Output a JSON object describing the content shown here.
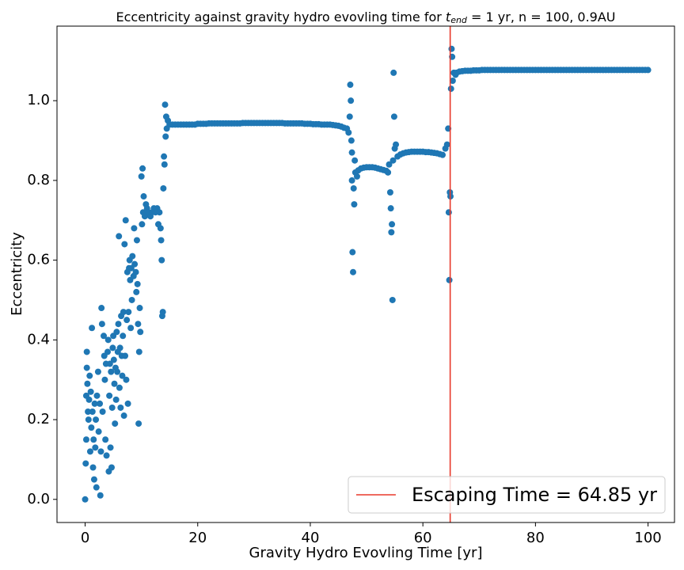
{
  "chart_data": {
    "type": "scatter",
    "title": [
      "Eccentricity against gravity hydro evovling time for ",
      "t",
      "end",
      " = 1 yr, n = 100, 0.9AU"
    ],
    "x_label": "Gravity Hydro Evovling Time [yr]",
    "y_label": "Eccentricity",
    "color": "#1f77b4",
    "xlim": [
      -5,
      104.7
    ],
    "ylim": [
      -0.058,
      1.187
    ],
    "xticks": [
      0,
      20,
      40,
      60,
      80,
      100
    ],
    "yticks": [
      {
        "value": 0,
        "label": "0.0"
      },
      0.2,
      0.4,
      0.6,
      0.8,
      {
        "value": 1,
        "label": "1.0"
      }
    ],
    "grid": false,
    "legend": "lower right",
    "vline": {
      "x": 64.85,
      "label": "Escaping Time = 64.85 yr",
      "color": "#e8392a"
    },
    "x": [
      0,
      0.1,
      0.2,
      0.2,
      0.3,
      0.3,
      0.4,
      0.5,
      0.6,
      0.7,
      0.8,
      0.9,
      1.0,
      1.1,
      1.2,
      1.3,
      1.4,
      1.5,
      1.6,
      1.7,
      1.8,
      1.9,
      2.0,
      2.1,
      2.3,
      2.4,
      2.6,
      2.7,
      2.8,
      2.9,
      3.0,
      3.1,
      3.3,
      3.4,
      3.5,
      3.6,
      3.7,
      3.8,
      4.0,
      4.1,
      4.2,
      4.3,
      4.4,
      4.5,
      4.6,
      4.7,
      4.8,
      4.9,
      5.0,
      5.1,
      5.2,
      5.3,
      5.4,
      5.5,
      5.6,
      5.7,
      5.8,
      5.9,
      6.0,
      6.1,
      6.2,
      6.3,
      6.4,
      6.5,
      6.6,
      6.7,
      6.8,
      6.9,
      7.0,
      7.1,
      7.2,
      7.3,
      7.4,
      7.5,
      7.6,
      7.7,
      7.8,
      7.9,
      8.0,
      8.1,
      8.2,
      8.3,
      8.4,
      8.6,
      8.7,
      8.8,
      9.0,
      9.1,
      9.2,
      9.3,
      9.4,
      9.5,
      9.6,
      9.7,
      9.8,
      10.0,
      10.1,
      10.2,
      10.3,
      10.4,
      10.6,
      10.8,
      11.0,
      11.3,
      11.6,
      11.9,
      12.2,
      12.5,
      12.8,
      13.0,
      13.2,
      13.4,
      13.5,
      13.6,
      13.7,
      13.8,
      13.9,
      14.0,
      14.1,
      14.2,
      14.3,
      14.4,
      14.5,
      14.7,
      15.0,
      15.5,
      16.0,
      16.5,
      17.0,
      17.5,
      18,
      18.5,
      19,
      19.5,
      20,
      20.5,
      21,
      21.5,
      22,
      22.5,
      23,
      23.5,
      24,
      24.5,
      25,
      25.5,
      26,
      26.5,
      27,
      27.5,
      28,
      28.5,
      29,
      29.5,
      30,
      30.5,
      31,
      31.5,
      32,
      32.5,
      33,
      33.5,
      34,
      34.5,
      35,
      35.5,
      36,
      36.5,
      37,
      37.5,
      38,
      38.5,
      39,
      39.5,
      40,
      40.5,
      41,
      41.5,
      42,
      42.5,
      43,
      43.5,
      44,
      44.5,
      45,
      45.5,
      46,
      46.5,
      46.8,
      47.0,
      47.1,
      47.2,
      47.3,
      47.4,
      47.4,
      47.5,
      47.6,
      47.7,
      47.8,
      47.9,
      48.0,
      48.3,
      48.5,
      49,
      49.5,
      50,
      50.5,
      51,
      51.5,
      52,
      52.5,
      53,
      53.5,
      53.8,
      54.0,
      54.2,
      54.3,
      54.4,
      54.5,
      54.6,
      54.7,
      54.8,
      54.9,
      55.0,
      55.2,
      55.5,
      56,
      56.5,
      57,
      57.5,
      58,
      58.5,
      59,
      59.5,
      60,
      60.5,
      61,
      61.5,
      62,
      62.5,
      63,
      63.5,
      64,
      64.3,
      64.5,
      64.6,
      64.7,
      64.8,
      64.9,
      65.0,
      65.1,
      65.2,
      65.3,
      65.5,
      65.8,
      66,
      66.5,
      67,
      67.5,
      68,
      68.5,
      69,
      69.5,
      70,
      70.5,
      71,
      71.5,
      72,
      72.5,
      73,
      73.5,
      74,
      74.5,
      75,
      75.5,
      76,
      76.5,
      77,
      77.5,
      78,
      78.5,
      79,
      79.5,
      80,
      80.5,
      81,
      81.5,
      82,
      82.5,
      83,
      83.5,
      84,
      84.5,
      85,
      85.5,
      86,
      86.5,
      87,
      87.5,
      88,
      88.5,
      89,
      89.5,
      90,
      90.5,
      91,
      91.5,
      92,
      92.5,
      93,
      93.5,
      94,
      94.5,
      95,
      95.5,
      96,
      96.5,
      97,
      97.5,
      98,
      98.5,
      99,
      99.5,
      100
    ],
    "values": [
      0,
      0.09,
      0.15,
      0.26,
      0.37,
      0.33,
      0.29,
      0.22,
      0.2,
      0.25,
      0.31,
      0.12,
      0.27,
      0.18,
      0.43,
      0.22,
      0.08,
      0.15,
      0.05,
      0.24,
      0.13,
      0.2,
      0.03,
      0.26,
      0.32,
      0.17,
      0.24,
      0.01,
      0.12,
      0.48,
      0.44,
      0.22,
      0.41,
      0.36,
      0.3,
      0.15,
      0.34,
      0.11,
      0.37,
      0.4,
      0.07,
      0.26,
      0.34,
      0.13,
      0.32,
      0.08,
      0.23,
      0.38,
      0.41,
      0.35,
      0.29,
      0.19,
      0.33,
      0.25,
      0.42,
      0.32,
      0.37,
      0.44,
      0.66,
      0.28,
      0.38,
      0.23,
      0.46,
      0.36,
      0.31,
      0.41,
      0.47,
      0.21,
      0.64,
      0.36,
      0.7,
      0.3,
      0.45,
      0.57,
      0.24,
      0.47,
      0.58,
      0.6,
      0.55,
      0.43,
      0.58,
      0.5,
      0.61,
      0.56,
      0.68,
      0.59,
      0.57,
      0.52,
      0.65,
      0.54,
      0.44,
      0.19,
      0.37,
      0.48,
      0.42,
      0.81,
      0.69,
      0.83,
      0.72,
      0.76,
      0.71,
      0.74,
      0.73,
      0.72,
      0.71,
      0.72,
      0.73,
      0.72,
      0.73,
      0.69,
      0.72,
      0.68,
      0.65,
      0.6,
      0.46,
      0.47,
      0.78,
      0.86,
      0.84,
      0.99,
      0.91,
      0.96,
      0.93,
      0.95,
      0.94,
      0.94,
      0.94,
      0.94,
      0.94,
      0.94,
      0.94,
      0.94,
      0.94,
      0.94,
      0.942,
      0.942,
      0.942,
      0.942,
      0.943,
      0.943,
      0.943,
      0.943,
      0.943,
      0.943,
      0.943,
      0.943,
      0.943,
      0.943,
      0.943,
      0.943,
      0.944,
      0.944,
      0.944,
      0.944,
      0.944,
      0.944,
      0.944,
      0.944,
      0.944,
      0.944,
      0.944,
      0.944,
      0.944,
      0.944,
      0.944,
      0.943,
      0.943,
      0.943,
      0.943,
      0.943,
      0.943,
      0.943,
      0.942,
      0.942,
      0.942,
      0.941,
      0.941,
      0.941,
      0.94,
      0.94,
      0.94,
      0.94,
      0.939,
      0.938,
      0.937,
      0.935,
      0.932,
      0.93,
      0.92,
      0.96,
      1.04,
      1.0,
      0.9,
      0.87,
      0.8,
      0.62,
      0.57,
      0.78,
      0.74,
      0.85,
      0.82,
      0.81,
      0.825,
      0.83,
      0.832,
      0.833,
      0.833,
      0.833,
      0.832,
      0.83,
      0.828,
      0.826,
      0.824,
      0.82,
      0.84,
      0.77,
      0.73,
      0.67,
      0.69,
      0.5,
      0.85,
      1.07,
      0.96,
      0.88,
      0.89,
      0.86,
      0.865,
      0.868,
      0.87,
      0.871,
      0.872,
      0.872,
      0.872,
      0.872,
      0.872,
      0.871,
      0.871,
      0.87,
      0.869,
      0.868,
      0.866,
      0.864,
      0.88,
      0.89,
      0.93,
      0.72,
      0.55,
      0.77,
      0.76,
      1.03,
      1.13,
      1.11,
      1.05,
      1.07,
      1.065,
      1.07,
      1.073,
      1.074,
      1.075,
      1.075,
      1.075,
      1.076,
      1.076,
      1.076,
      1.077,
      1.077,
      1.077,
      1.077,
      1.077,
      1.077,
      1.077,
      1.077,
      1.077,
      1.077,
      1.077,
      1.077,
      1.077,
      1.077,
      1.077,
      1.077,
      1.077,
      1.077,
      1.077,
      1.077,
      1.077,
      1.077,
      1.077,
      1.077,
      1.077,
      1.077,
      1.077,
      1.077,
      1.077,
      1.077,
      1.077,
      1.077,
      1.077,
      1.077,
      1.077,
      1.077,
      1.077,
      1.077,
      1.077,
      1.077,
      1.077,
      1.077,
      1.077,
      1.077,
      1.077,
      1.077,
      1.077,
      1.077,
      1.077,
      1.077,
      1.077,
      1.077,
      1.077,
      1.077,
      1.077,
      1.077,
      1.077,
      1.077,
      1.077,
      1.077
    ]
  }
}
